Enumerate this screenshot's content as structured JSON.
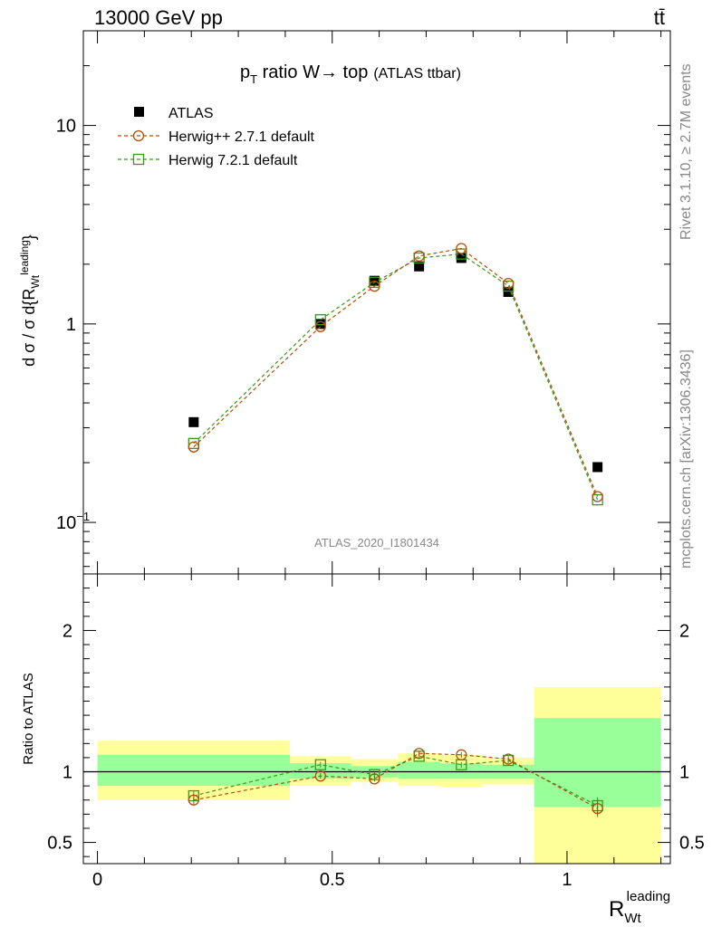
{
  "header": {
    "left": "13000 GeV pp",
    "right": "tt̄"
  },
  "side_labels": {
    "rivet": "Rivet 3.1.10, ≥ 2.7M events",
    "mcplots": "mcplots.cern.ch [arXiv:1306.3436]"
  },
  "colors": {
    "atlas": "#000000",
    "herwigpp": "#b0500a",
    "herwig72": "#3a9a1a",
    "band_outer": "#ffff99",
    "band_inner": "#99ff99"
  },
  "chart_data": [
    {
      "type": "scatter",
      "title_main": "p",
      "title_sub": "T",
      "title_rest": " ratio W→ top",
      "title_small": "(ATLAS ttbar)",
      "watermark": "ATLAS_2020_I1801434",
      "ylabel": "dσ/σ d{R_Wt leading}",
      "yscale": "log",
      "ylim": [
        0.055,
        30
      ],
      "xlim": [
        -0.03,
        1.22
      ],
      "y_ticks": [
        {
          "v": 0.1,
          "label": "10",
          "sup": "−1"
        },
        {
          "v": 1,
          "label": "1",
          "sup": ""
        },
        {
          "v": 10,
          "label": "10",
          "sup": ""
        }
      ],
      "legend": [
        {
          "name": "ATLAS",
          "marker": "square-filled"
        },
        {
          "name": "Herwig++ 2.7.1 default",
          "marker": "circle-open"
        },
        {
          "name": "Herwig 7.2.1 default",
          "marker": "square-open"
        }
      ],
      "series": [
        {
          "name": "ATLAS",
          "x": [
            0.205,
            0.475,
            0.59,
            0.685,
            0.775,
            0.875,
            1.065
          ],
          "values": [
            0.32,
            1.0,
            1.65,
            1.95,
            2.15,
            1.45,
            0.19
          ]
        },
        {
          "name": "Herwig++ 2.7.1 default",
          "x": [
            0.205,
            0.475,
            0.59,
            0.685,
            0.775,
            0.875,
            1.065
          ],
          "values": [
            0.24,
            0.97,
            1.55,
            2.2,
            2.4,
            1.6,
            0.135
          ]
        },
        {
          "name": "Herwig 7.2.1 default",
          "x": [
            0.205,
            0.475,
            0.59,
            0.685,
            0.775,
            0.875,
            1.065
          ],
          "values": [
            0.25,
            1.05,
            1.62,
            2.15,
            2.25,
            1.55,
            0.13
          ]
        }
      ]
    },
    {
      "type": "scatter",
      "ylabel": "Ratio to ATLAS",
      "xlabel_main": "R",
      "xlabel_sub": "Wt",
      "xlabel_sup": "leading",
      "ylim": [
        0.35,
        2.4
      ],
      "xlim": [
        -0.03,
        1.22
      ],
      "reference_line": 1,
      "x_ticks": [
        {
          "v": 0,
          "label": "0"
        },
        {
          "v": 0.5,
          "label": "0.5"
        },
        {
          "v": 1,
          "label": "1"
        }
      ],
      "y_ticks": [
        {
          "v": 0.5,
          "label": "0.5"
        },
        {
          "v": 1,
          "label": "1"
        },
        {
          "v": 2,
          "label": "2"
        }
      ],
      "bins": [
        {
          "lo": 0.0,
          "hi": 0.41,
          "outer": [
            0.8,
            1.22
          ],
          "inner": [
            0.9,
            1.12
          ]
        },
        {
          "lo": 0.41,
          "hi": 0.54,
          "outer": [
            0.9,
            1.11
          ],
          "inner": [
            0.95,
            1.06
          ]
        },
        {
          "lo": 0.54,
          "hi": 0.64,
          "outer": [
            0.93,
            1.09
          ],
          "inner": [
            0.96,
            1.04
          ]
        },
        {
          "lo": 0.64,
          "hi": 0.73,
          "outer": [
            0.9,
            1.13
          ],
          "inner": [
            0.95,
            1.07
          ]
        },
        {
          "lo": 0.73,
          "hi": 0.82,
          "outer": [
            0.89,
            1.12
          ],
          "inner": [
            0.95,
            1.06
          ]
        },
        {
          "lo": 0.82,
          "hi": 0.93,
          "outer": [
            0.91,
            1.1
          ],
          "inner": [
            0.95,
            1.05
          ]
        },
        {
          "lo": 0.93,
          "hi": 1.2,
          "outer": [
            0.35,
            1.6
          ],
          "inner": [
            0.75,
            1.38
          ]
        }
      ],
      "series": [
        {
          "name": "Herwig++ 2.7.1 default",
          "x": [
            0.205,
            0.475,
            0.59,
            0.685,
            0.775,
            0.875,
            1.065
          ],
          "values": [
            0.8,
            0.97,
            0.95,
            1.13,
            1.12,
            1.09,
            0.74
          ],
          "err": [
            0.03,
            0.02,
            0.02,
            0.02,
            0.02,
            0.02,
            0.06
          ]
        },
        {
          "name": "Herwig 7.2.1 default",
          "x": [
            0.205,
            0.475,
            0.59,
            0.685,
            0.775,
            0.875,
            1.065
          ],
          "values": [
            0.83,
            1.05,
            0.98,
            1.11,
            1.05,
            1.08,
            0.76
          ],
          "err": [
            0.03,
            0.02,
            0.02,
            0.02,
            0.02,
            0.02,
            0.06
          ]
        }
      ]
    }
  ]
}
